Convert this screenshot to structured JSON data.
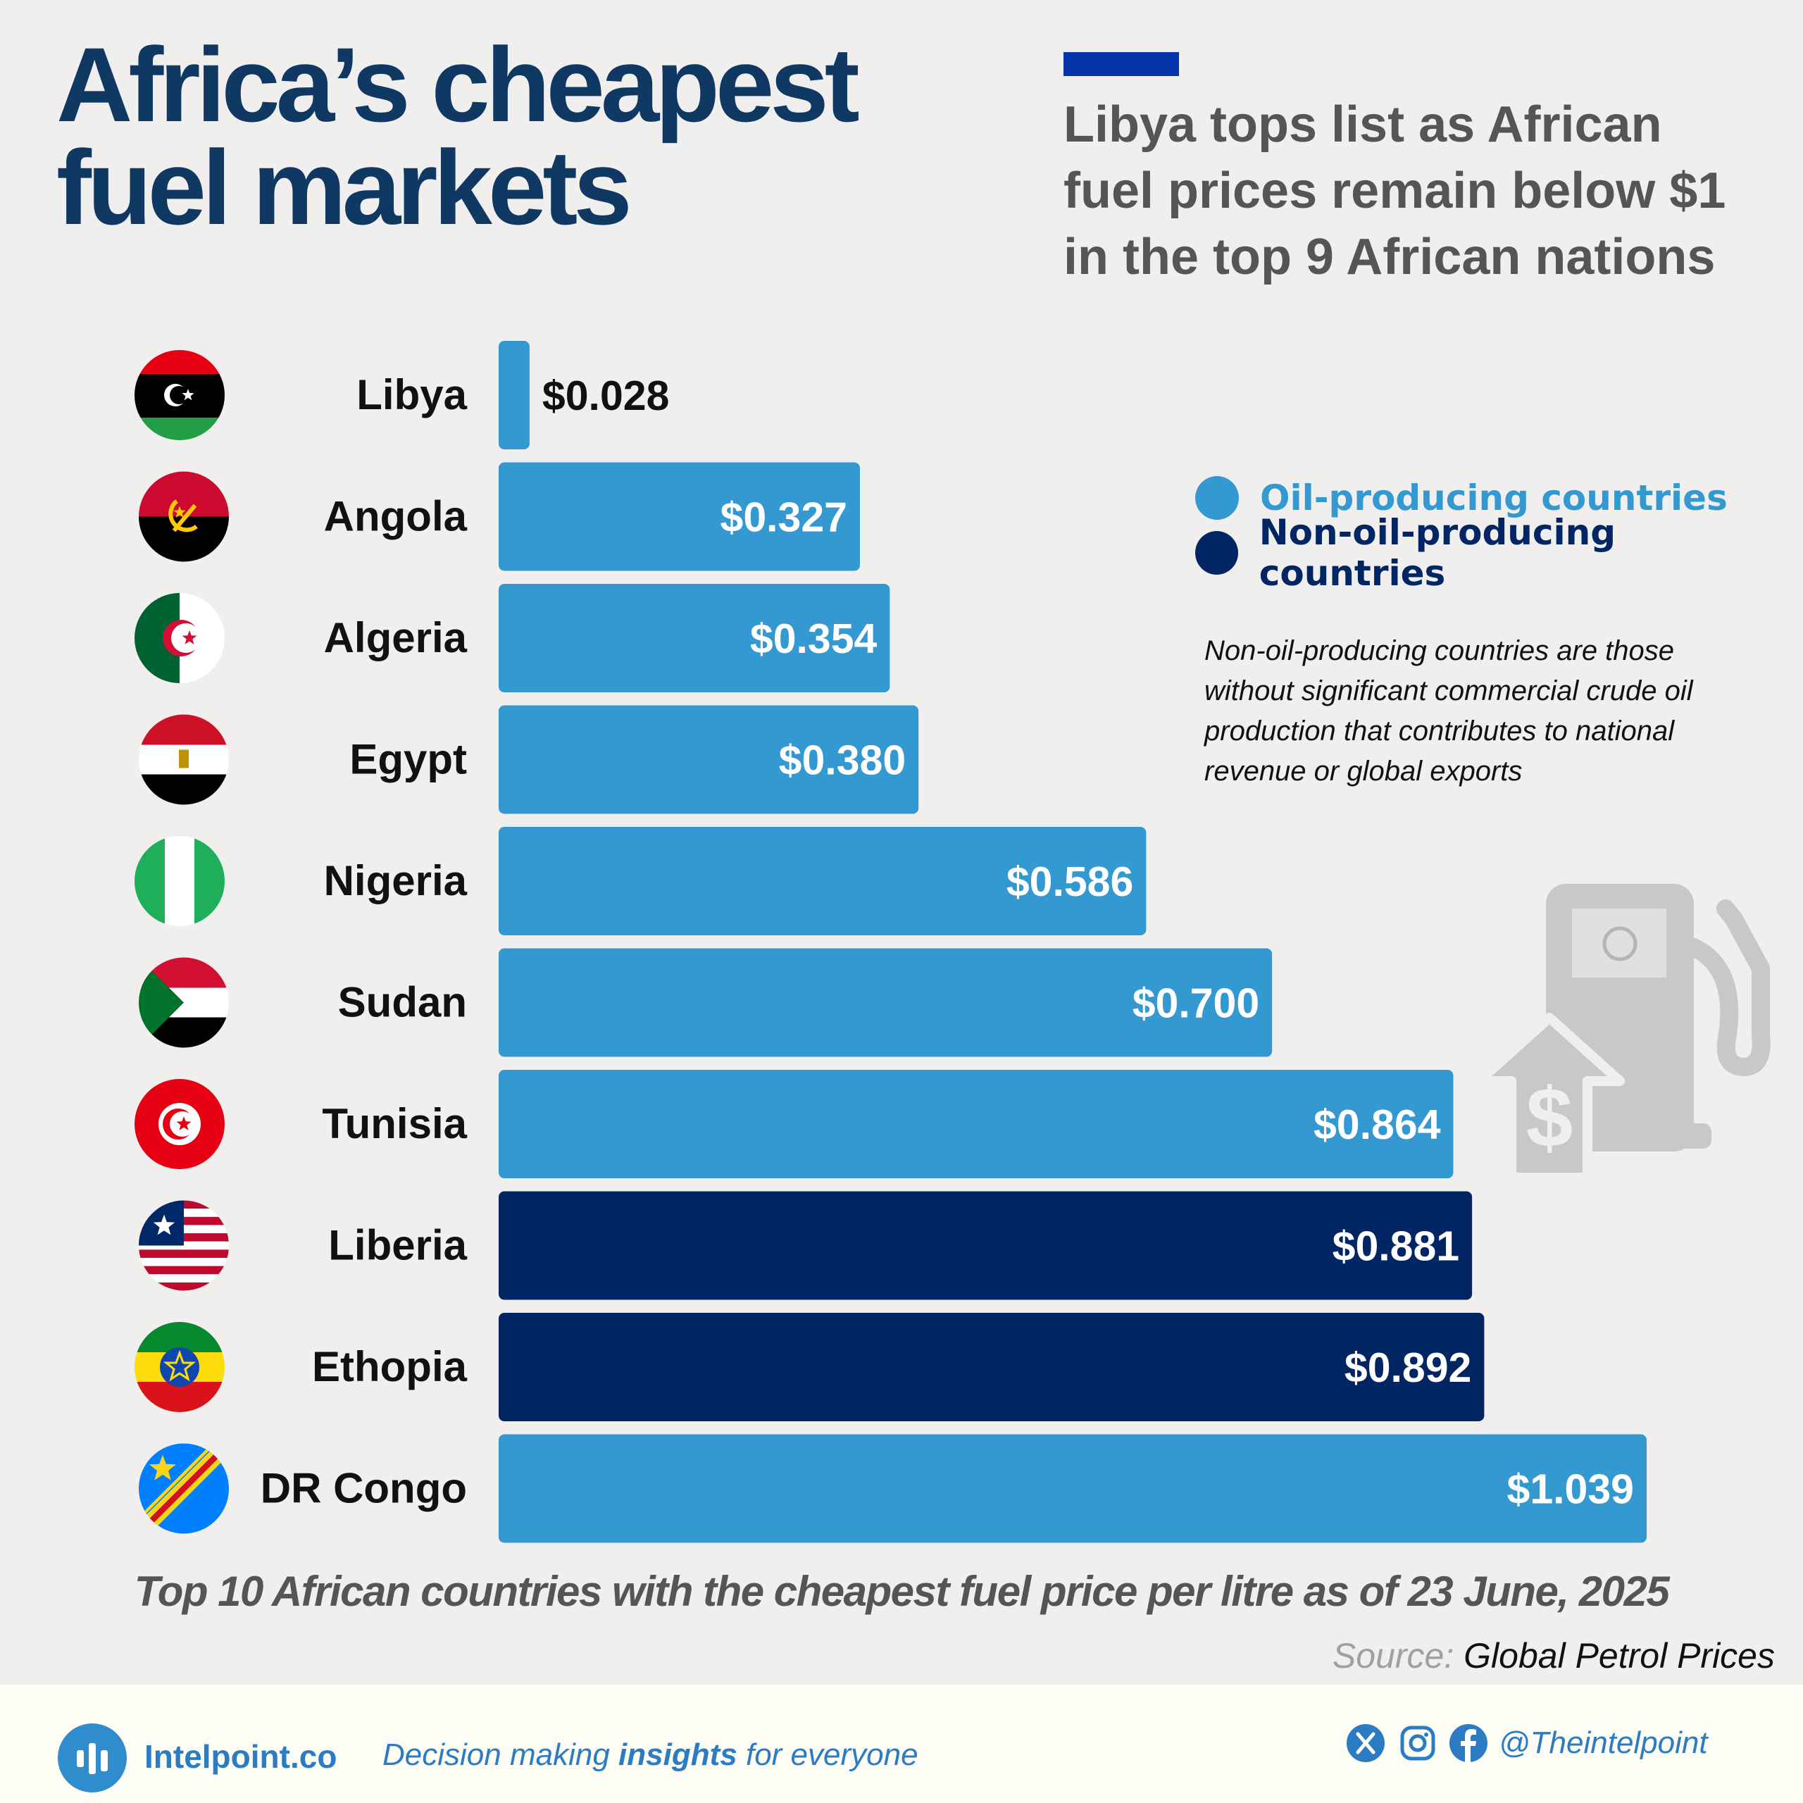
{
  "header": {
    "title_line1": "Africa’s cheapest",
    "title_line2": "fuel markets",
    "subtitle_line1": "Libya tops list as African",
    "subtitle_line2": "fuel prices remain below $1",
    "subtitle_line3": "in the top 9 African nations"
  },
  "chart_data": {
    "type": "bar",
    "orientation": "horizontal",
    "categories": [
      "Libya",
      "Angola",
      "Algeria",
      "Egypt",
      "Nigeria",
      "Sudan",
      "Tunisia",
      "Liberia",
      "Ethopia",
      "DR Congo"
    ],
    "values": [
      0.028,
      0.327,
      0.354,
      0.38,
      0.586,
      0.7,
      0.864,
      0.881,
      0.892,
      1.039
    ],
    "value_labels": [
      "$0.028",
      "$0.327",
      "$0.354",
      "$0.380",
      "$0.586",
      "$0.700",
      "$0.864",
      "$0.881",
      "$0.892",
      "$1.039"
    ],
    "groups": [
      "oil",
      "oil",
      "oil",
      "oil",
      "oil",
      "oil",
      "oil",
      "non-oil",
      "non-oil",
      "oil"
    ],
    "colors": {
      "oil": "#3399d0",
      "non-oil": "#022663"
    },
    "xlim": [
      0,
      1.039
    ],
    "grid": false,
    "legend_position": "right",
    "legend": [
      {
        "group": "oil",
        "label": "Oil-producing countries"
      },
      {
        "group": "non-oil",
        "label": "Non-oil-producing countries"
      }
    ],
    "caption": "Top 10 African countries with the cheapest fuel price per litre as of 23 June, 2025"
  },
  "note": {
    "line1": "Non-oil-producing countries are those",
    "line2": "without significant commercial crude oil",
    "line3": "production that contributes to national",
    "line4": "revenue or global exports"
  },
  "source": {
    "label": "Source:",
    "value": "Global Petrol Prices"
  },
  "footer": {
    "brand": "Intelpoint.co",
    "tagline_pre": "Decision making",
    "tagline_bold": "insights",
    "tagline_post": "for everyone",
    "handle": "@Theintelpoint",
    "social_icons": [
      "x-icon",
      "instagram-icon",
      "facebook-icon"
    ]
  },
  "flags": [
    "libya-flag-icon",
    "angola-flag-icon",
    "algeria-flag-icon",
    "egypt-flag-icon",
    "nigeria-flag-icon",
    "sudan-flag-icon",
    "tunisia-flag-icon",
    "liberia-flag-icon",
    "ethiopia-flag-icon",
    "dr-congo-flag-icon"
  ],
  "decorations": [
    "fuel-pump-icon"
  ]
}
